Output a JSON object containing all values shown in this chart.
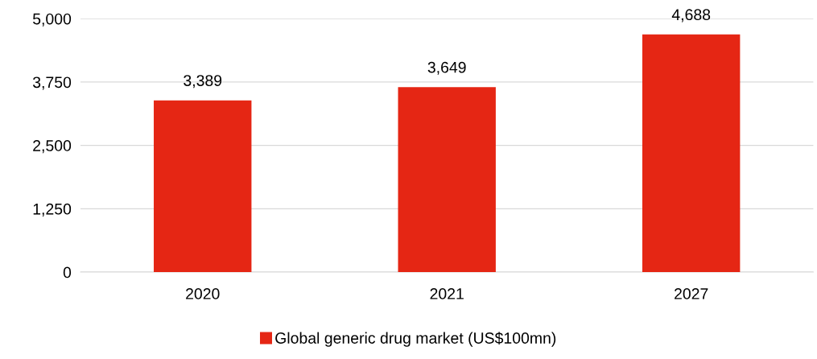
{
  "chart_data": {
    "type": "bar",
    "categories": [
      "2020",
      "2021",
      "2027"
    ],
    "series": [
      {
        "name": "Global generic drug market (US$100mn)",
        "color": "#e52614",
        "values": [
          3389,
          3649,
          4688
        ]
      }
    ],
    "ylim": [
      0,
      5000
    ],
    "yticks": [
      {
        "value": 0,
        "label": "0"
      },
      {
        "value": 1250,
        "label": "1,250"
      },
      {
        "value": 2500,
        "label": "2,500"
      },
      {
        "value": 3750,
        "label": "3,750"
      },
      {
        "value": 5000,
        "label": "5,000"
      }
    ],
    "value_labels": [
      "3,389",
      "3,649",
      "4,688"
    ],
    "grid": "y",
    "legend": "bottom"
  }
}
